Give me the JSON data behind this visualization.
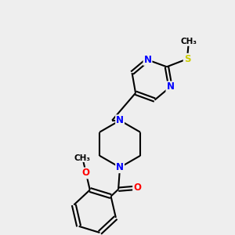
{
  "bg_color": "#eeeeee",
  "atom_colors": {
    "C": "#000000",
    "N": "#0000ff",
    "O": "#ff0000",
    "S": "#cccc00"
  },
  "bond_color": "#000000",
  "bond_width": 1.5,
  "font_size": 8.5
}
